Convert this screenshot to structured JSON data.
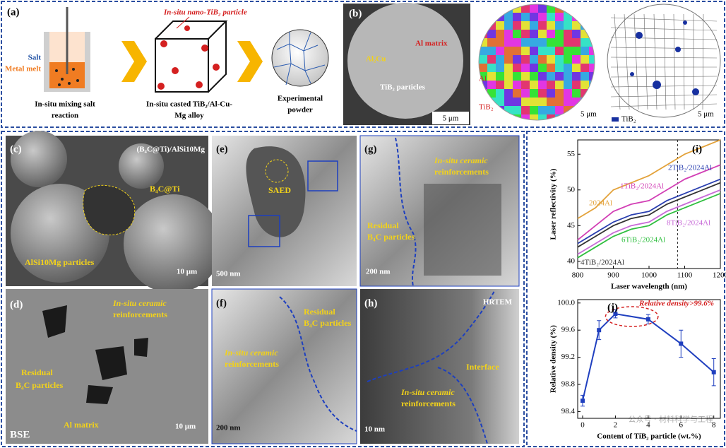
{
  "panels": {
    "a": {
      "label": "(a)",
      "salt": "Salt",
      "melt": "Metal melt",
      "particle": "In-situ nano-TiB₂ particle",
      "step1": [
        "In-situ mixing salt",
        "reaction"
      ],
      "step2": [
        "In-situ casted TiB₂/Al-Cu-",
        "Mg alloy"
      ],
      "step3": [
        "Experimental",
        "powder"
      ]
    },
    "b": {
      "label": "(b)",
      "al_matrix": "Al matrix",
      "al2cu": "Al₂Cu",
      "tib2": "TiB₂ particles",
      "scale1": "5 μm",
      "scale2": "5 μm",
      "scale3": "5 μm",
      "ipf_al": "Al",
      "ipf_tib2": "TiB₂",
      "legend": "TiB₂"
    },
    "c": {
      "label": "(c)",
      "title": "(B₄C@Ti)/AlSi10Mg",
      "b4c": "B₄C@Ti",
      "alsi": "AlSi10Mg particles",
      "scale": "10 μm"
    },
    "d": {
      "label": "(d)",
      "insitu": [
        "In-situ ceramic",
        "reinforcements"
      ],
      "residual": [
        "Residual",
        "B₄C particles"
      ],
      "matrix": "Al matrix",
      "bse": "BSE",
      "scale": "10 μm"
    },
    "e": {
      "label": "(e)",
      "saed": "SAED",
      "scale": "500 nm"
    },
    "f": {
      "label": "(f)",
      "residual": [
        "Residual",
        "B₄C particles"
      ],
      "insitu": [
        "In-situ ceramic",
        "reinforcements"
      ],
      "scale": "200 nm"
    },
    "g": {
      "label": "(g)",
      "insitu": [
        "In-situ ceramic",
        "reinforcements"
      ],
      "residual": [
        "Residual",
        "B₄C particles"
      ],
      "scale": "200 nm"
    },
    "h": {
      "label": "(h)",
      "hrtem": "HRTEM",
      "interface": "Interface",
      "insitu": [
        "In-situ ceramic",
        "reinforcements"
      ],
      "scale": "10 nm"
    }
  },
  "chart_data": [
    {
      "type": "line",
      "label": "(i)",
      "xlabel": "Laser wavelength (nm)",
      "ylabel": "Laser reflectivity (%)",
      "x": [
        800,
        850,
        900,
        950,
        1000,
        1050,
        1100,
        1150,
        1200
      ],
      "xlim": [
        800,
        1200
      ],
      "xticks": [
        800,
        900,
        1000,
        1100,
        1200
      ],
      "ylim": [
        39,
        57
      ],
      "yticks": [
        40,
        45,
        50,
        55
      ],
      "vline": 1080,
      "series": [
        {
          "name": "2024Al",
          "color": "#e3a23a",
          "values": [
            46,
            47.5,
            50,
            51,
            52,
            53.5,
            55,
            56,
            57
          ]
        },
        {
          "name": "1TiB₂/2024Al",
          "color": "#d23fb5",
          "values": [
            43,
            45,
            47,
            48,
            48.5,
            50,
            51.5,
            52.5,
            53.5
          ]
        },
        {
          "name": "2TiB₂/2024Al",
          "color": "#2a3fb0",
          "values": [
            42.5,
            44,
            45.5,
            46.5,
            47,
            48.5,
            49.5,
            50.5,
            51.5
          ]
        },
        {
          "name": "4TiB₂/2024Al",
          "color": "#333333",
          "values": [
            42,
            43.5,
            45,
            46,
            46.5,
            48,
            49,
            50,
            51
          ]
        },
        {
          "name": "8TiB₂/2024Al",
          "color": "#c86ad8",
          "values": [
            41,
            42.5,
            44,
            45,
            45.5,
            47,
            48,
            49,
            50
          ]
        },
        {
          "name": "6TiB₂/2024Al",
          "color": "#2fbf3f",
          "values": [
            40.5,
            42,
            43.5,
            44.5,
            45,
            46.5,
            47.5,
            48.5,
            49.5
          ]
        }
      ]
    },
    {
      "type": "errorline",
      "label": "(j)",
      "xlabel": "Content of TiB₂ particle (wt.%)",
      "ylabel": "Relative density (%)",
      "annotation": "Relative density>99.6%",
      "color": "#1f3fbf",
      "x": [
        0,
        1,
        2,
        4,
        6,
        8
      ],
      "values": [
        98.56,
        99.6,
        99.84,
        99.76,
        99.4,
        98.98
      ],
      "errors": [
        0.08,
        0.14,
        0.06,
        0.07,
        0.2,
        0.2
      ],
      "xlim": [
        -0.3,
        8.4
      ],
      "xticks": [
        0,
        2,
        4,
        6,
        8
      ],
      "ylim": [
        98.3,
        100.05
      ],
      "yticks": [
        98.4,
        98.8,
        99.2,
        99.6,
        {
          "value": 100,
          "label": "100.0"
        }
      ]
    }
  ],
  "watermark": "公众号 · 材料科学与工程"
}
